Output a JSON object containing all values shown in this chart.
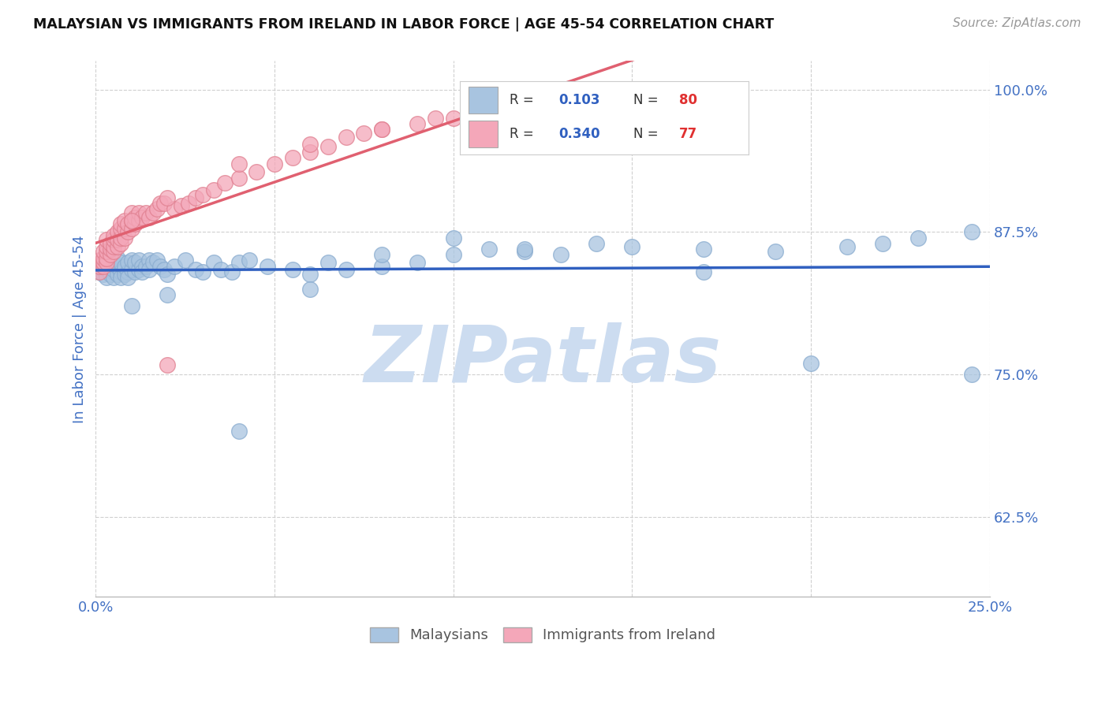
{
  "title": "MALAYSIAN VS IMMIGRANTS FROM IRELAND IN LABOR FORCE | AGE 45-54 CORRELATION CHART",
  "source": "Source: ZipAtlas.com",
  "ylabel": "In Labor Force | Age 45-54",
  "xlim": [
    0.0,
    0.25
  ],
  "ylim": [
    0.555,
    1.025
  ],
  "xticks": [
    0.0,
    0.05,
    0.1,
    0.15,
    0.2,
    0.25
  ],
  "yticks": [
    0.625,
    0.75,
    0.875,
    1.0
  ],
  "xticklabels": [
    "0.0%",
    "",
    "",
    "",
    "",
    "25.0%"
  ],
  "yticklabels": [
    "62.5%",
    "75.0%",
    "87.5%",
    "100.0%"
  ],
  "blue_R": 0.103,
  "blue_N": 80,
  "pink_R": 0.34,
  "pink_N": 77,
  "blue_color": "#a8c4e0",
  "pink_color": "#f4a7b9",
  "blue_line_color": "#3060c0",
  "pink_line_color": "#e06070",
  "title_color": "#222222",
  "tick_label_color": "#4472c4",
  "watermark": "ZIPatlas",
  "watermark_color": "#ccdcf0",
  "legend_label_blue": "Malaysians",
  "legend_label_pink": "Immigrants from Ireland",
  "blue_scatter_x": [
    0.001,
    0.001,
    0.002,
    0.002,
    0.003,
    0.003,
    0.003,
    0.004,
    0.004,
    0.004,
    0.005,
    0.005,
    0.005,
    0.005,
    0.006,
    0.006,
    0.006,
    0.007,
    0.007,
    0.007,
    0.008,
    0.008,
    0.008,
    0.009,
    0.009,
    0.009,
    0.01,
    0.01,
    0.011,
    0.011,
    0.012,
    0.012,
    0.013,
    0.013,
    0.014,
    0.015,
    0.015,
    0.016,
    0.017,
    0.018,
    0.019,
    0.02,
    0.022,
    0.025,
    0.028,
    0.03,
    0.033,
    0.035,
    0.038,
    0.04,
    0.043,
    0.048,
    0.055,
    0.06,
    0.065,
    0.07,
    0.08,
    0.09,
    0.1,
    0.11,
    0.12,
    0.13,
    0.15,
    0.17,
    0.19,
    0.21,
    0.23,
    0.245,
    0.245,
    0.22,
    0.2,
    0.17,
    0.14,
    0.12,
    0.1,
    0.08,
    0.06,
    0.04,
    0.02,
    0.01
  ],
  "blue_scatter_y": [
    0.845,
    0.84,
    0.838,
    0.842,
    0.85,
    0.835,
    0.843,
    0.838,
    0.845,
    0.852,
    0.84,
    0.848,
    0.835,
    0.842,
    0.838,
    0.845,
    0.852,
    0.84,
    0.848,
    0.835,
    0.842,
    0.838,
    0.845,
    0.84,
    0.848,
    0.835,
    0.842,
    0.85,
    0.84,
    0.848,
    0.842,
    0.85,
    0.845,
    0.84,
    0.845,
    0.85,
    0.842,
    0.848,
    0.85,
    0.845,
    0.842,
    0.838,
    0.845,
    0.85,
    0.842,
    0.84,
    0.848,
    0.842,
    0.84,
    0.848,
    0.85,
    0.845,
    0.842,
    0.838,
    0.848,
    0.842,
    0.845,
    0.848,
    0.855,
    0.86,
    0.858,
    0.855,
    0.862,
    0.86,
    0.858,
    0.862,
    0.87,
    0.875,
    0.75,
    0.865,
    0.76,
    0.84,
    0.865,
    0.86,
    0.87,
    0.855,
    0.825,
    0.7,
    0.82,
    0.81
  ],
  "pink_scatter_x": [
    0.001,
    0.001,
    0.001,
    0.002,
    0.002,
    0.002,
    0.002,
    0.003,
    0.003,
    0.003,
    0.003,
    0.003,
    0.004,
    0.004,
    0.004,
    0.005,
    0.005,
    0.005,
    0.005,
    0.006,
    0.006,
    0.006,
    0.007,
    0.007,
    0.007,
    0.007,
    0.008,
    0.008,
    0.008,
    0.009,
    0.009,
    0.01,
    0.01,
    0.01,
    0.011,
    0.011,
    0.012,
    0.012,
    0.013,
    0.014,
    0.015,
    0.016,
    0.017,
    0.018,
    0.019,
    0.02,
    0.022,
    0.024,
    0.026,
    0.028,
    0.03,
    0.033,
    0.036,
    0.04,
    0.045,
    0.05,
    0.055,
    0.06,
    0.065,
    0.07,
    0.075,
    0.08,
    0.09,
    0.1,
    0.11,
    0.12,
    0.13,
    0.14,
    0.15,
    0.155,
    0.115,
    0.095,
    0.08,
    0.06,
    0.04,
    0.02,
    0.01
  ],
  "pink_scatter_y": [
    0.84,
    0.845,
    0.85,
    0.845,
    0.848,
    0.852,
    0.858,
    0.848,
    0.852,
    0.858,
    0.862,
    0.868,
    0.855,
    0.86,
    0.865,
    0.858,
    0.862,
    0.868,
    0.872,
    0.862,
    0.868,
    0.875,
    0.865,
    0.87,
    0.878,
    0.882,
    0.87,
    0.878,
    0.885,
    0.875,
    0.882,
    0.878,
    0.885,
    0.892,
    0.882,
    0.888,
    0.885,
    0.892,
    0.888,
    0.892,
    0.888,
    0.892,
    0.895,
    0.9,
    0.9,
    0.758,
    0.895,
    0.898,
    0.9,
    0.905,
    0.908,
    0.912,
    0.918,
    0.922,
    0.928,
    0.935,
    0.94,
    0.945,
    0.95,
    0.958,
    0.962,
    0.965,
    0.97,
    0.975,
    0.98,
    0.985,
    0.99,
    0.995,
    1.0,
    1.0,
    0.985,
    0.975,
    0.965,
    0.952,
    0.935,
    0.905,
    0.885
  ]
}
